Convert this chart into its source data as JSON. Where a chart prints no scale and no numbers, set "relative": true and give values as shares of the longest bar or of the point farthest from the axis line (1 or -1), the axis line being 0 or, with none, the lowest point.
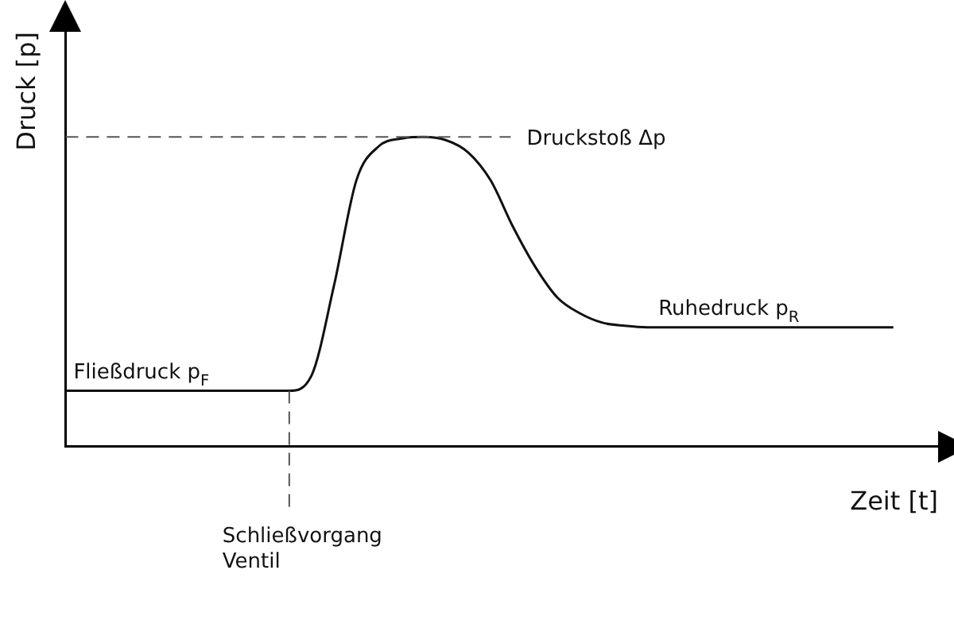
{
  "chart_data": {
    "type": "line",
    "relative": true,
    "xlabel": "Zeit [t]",
    "ylabel": "Druck [p]",
    "categories": [
      null,
      null,
      null,
      null,
      null,
      null,
      null,
      null,
      null,
      null,
      null,
      null,
      null,
      null,
      null,
      null,
      null,
      null,
      null,
      null,
      null,
      null,
      null,
      null,
      null,
      null,
      null,
      null,
      null,
      null,
      null,
      null,
      null,
      null,
      null,
      null,
      null,
      null
    ],
    "series": [
      {
        "color": "#111111",
        "values": [
          0.18,
          0.18,
          0.18,
          0.18,
          0.18,
          0.18,
          0.18,
          0.18,
          0.18,
          0.18,
          0.18,
          0.23,
          0.52,
          0.86,
          0.97,
          0.995,
          1.0,
          0.99,
          0.95,
          0.86,
          0.71,
          0.58,
          0.48,
          0.43,
          0.4,
          0.39,
          0.385,
          0.385,
          0.385,
          0.385,
          0.385,
          0.385,
          0.385,
          0.385,
          0.385,
          0.385,
          0.385,
          0.385
        ]
      }
    ],
    "ref_lines": [
      {
        "axis": "y",
        "value": 1.0,
        "label": "Druckstoß Δp",
        "color": "#555555",
        "line_style": "dashed"
      }
    ],
    "annotations": [
      {
        "text": "Fließdruck p$_{F}$",
        "y": 0.18
      },
      {
        "text": "Ruhedruck p$_{R}$",
        "y": 0.385
      },
      "Schließvorgang\nVentil"
    ],
    "grid": false,
    "legend": false,
    "marker": "none",
    "line_style": "solid"
  }
}
